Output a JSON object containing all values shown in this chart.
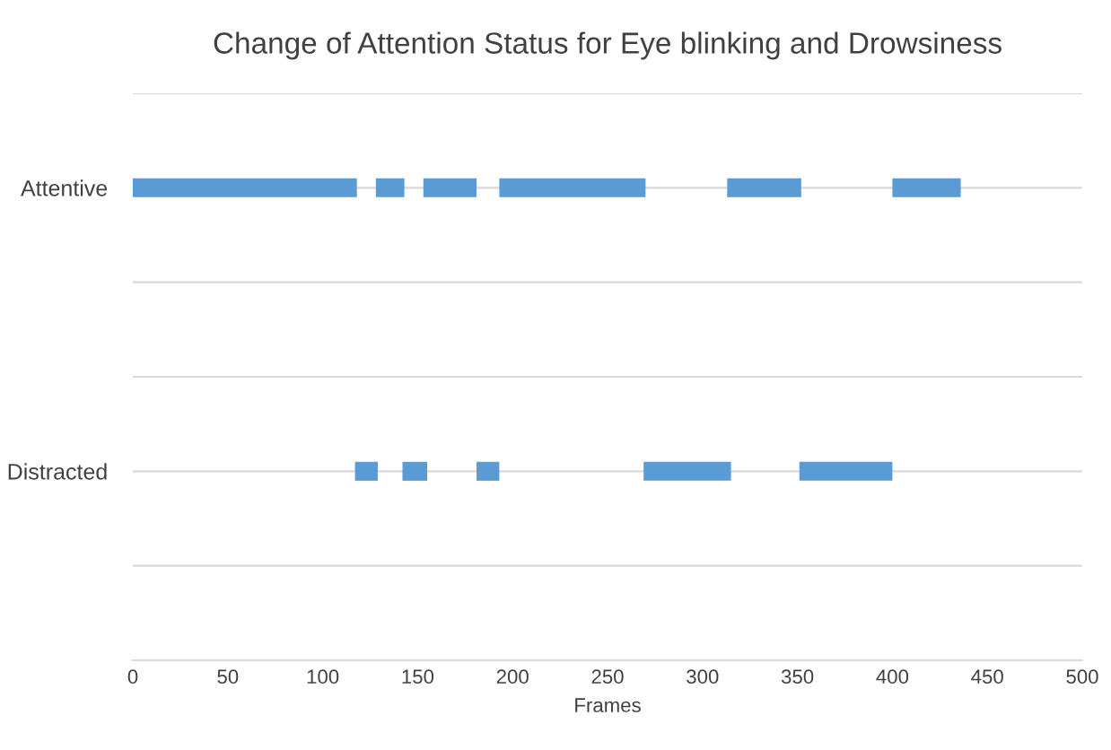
{
  "chart_data": {
    "type": "bar",
    "orientation": "horizontal",
    "title": "Change of Attention Status for Eye blinking and Drowsiness",
    "xlabel": "Frames",
    "categories": [
      null,
      "Attentive",
      null,
      null,
      "Distracted",
      null,
      null
    ],
    "series": [
      {
        "color": "#5b9bd5",
        "base": [
          null,
          0,
          null,
          null,
          117,
          null,
          null
        ],
        "values": [
          null,
          118,
          null,
          null,
          12,
          null,
          null
        ]
      },
      {
        "color": "#5b9bd5",
        "base": [
          null,
          128,
          null,
          null,
          142,
          null,
          null
        ],
        "values": [
          null,
          15,
          null,
          null,
          13,
          null,
          null
        ]
      },
      {
        "color": "#5b9bd5",
        "base": [
          null,
          153,
          null,
          null,
          181,
          null,
          null
        ],
        "values": [
          null,
          28,
          null,
          null,
          12,
          null,
          null
        ]
      },
      {
        "color": "#5b9bd5",
        "base": [
          null,
          193,
          null,
          null,
          269,
          null,
          null
        ],
        "values": [
          null,
          77,
          null,
          null,
          46,
          null,
          null
        ]
      },
      {
        "color": "#5b9bd5",
        "base": [
          null,
          313,
          null,
          null,
          351,
          null,
          null
        ],
        "values": [
          null,
          39,
          null,
          null,
          49,
          null,
          null
        ]
      },
      {
        "color": "#5b9bd5",
        "base": [
          null,
          400,
          null,
          null,
          null,
          null,
          null
        ],
        "values": [
          null,
          36,
          null,
          null,
          null,
          null,
          null
        ]
      }
    ],
    "xlim": [
      0,
      500
    ],
    "xticks": [
      0,
      50,
      100,
      150,
      200,
      250,
      300,
      350,
      400,
      450,
      500
    ],
    "grid": "y"
  }
}
